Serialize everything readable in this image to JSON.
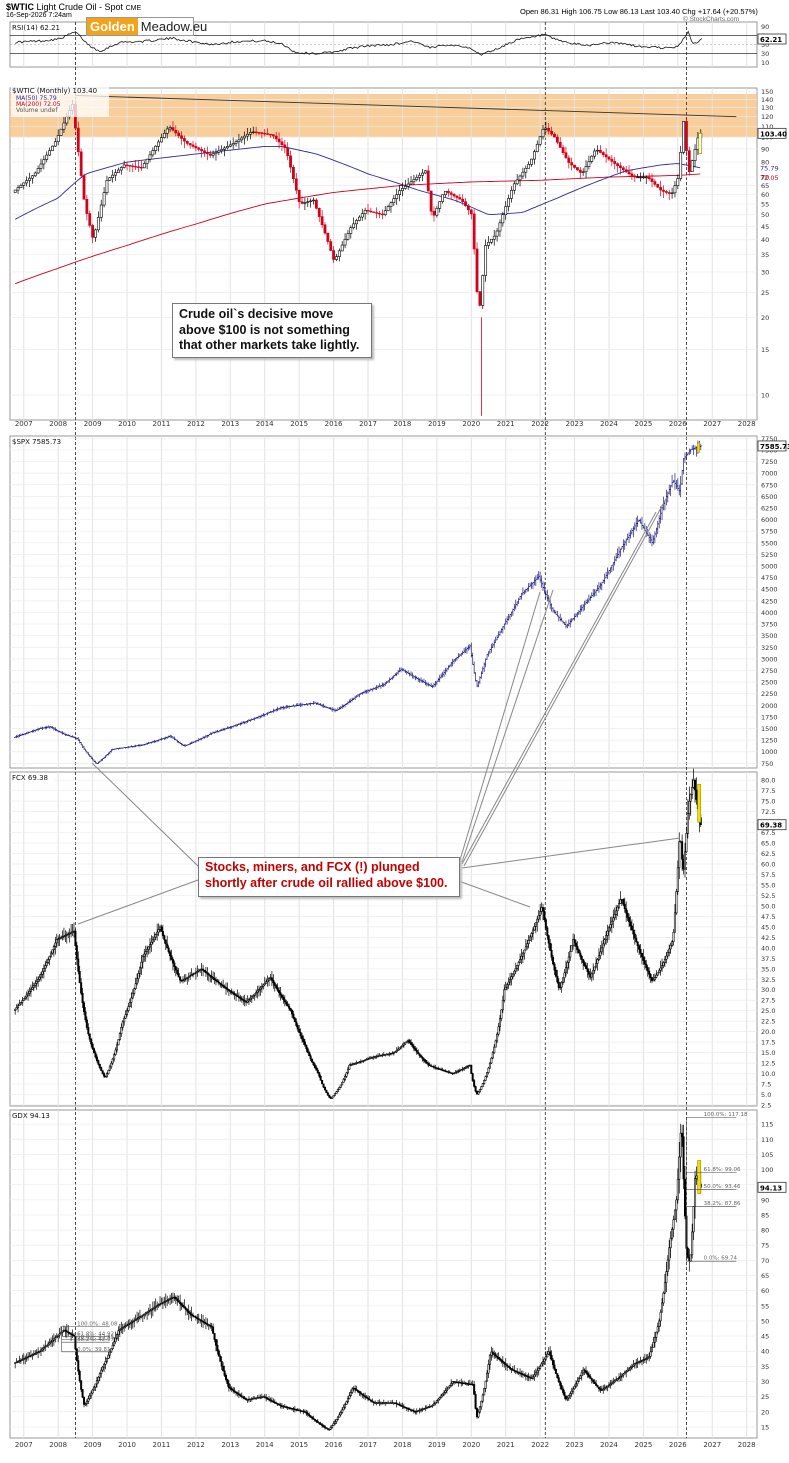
{
  "header": {
    "symbol": "$WTIC",
    "description": "Light Crude Oil - Spot",
    "exchange": "CME",
    "date": "16-Sep-2026 7:24am",
    "open_label": "Open",
    "open": "86.31",
    "high_label": "High",
    "high": "106.75",
    "low_label": "Low",
    "low": "86.13",
    "last_label": "Last",
    "last": "103.40",
    "chg_label": "Chg",
    "chg": "+17.64 (+20.57%)",
    "credit": "© StockCharts.com"
  },
  "logo": {
    "part1": "Golden",
    "part2": "Meadow.eu"
  },
  "notes": {
    "oil": "Crude oil`s decisive move above $100 is not something that other markets take lightly.",
    "stocks": "Stocks, miners, and FCX (!) plunged shortly after crude oil rallied above $100."
  },
  "colors": {
    "up": "#000000",
    "down": "#d0021b",
    "ma50": "#2d2a9c",
    "ma200": "#d0021b",
    "band": "#f7c68a",
    "spx": "#1c1a7a",
    "yellow": "#f0e000",
    "rsi": "#111111"
  },
  "chart_data": [
    {
      "type": "line",
      "panel": "rsi",
      "label": "RSI(14) 62.21",
      "last": "62.21",
      "levels": [
        70,
        30
      ],
      "axis_ticks": [
        "90",
        "70",
        "50",
        "30",
        "10"
      ],
      "x": [
        2006.75,
        2007.5,
        2008.0,
        2008.5,
        2008.9,
        2009.2,
        2009.8,
        2010.5,
        2011.3,
        2012.0,
        2012.5,
        2013.2,
        2014.0,
        2014.5,
        2014.9,
        2015.5,
        2016.0,
        2016.5,
        2017.0,
        2017.7,
        2018.3,
        2018.8,
        2019.3,
        2019.8,
        2020.1,
        2020.3,
        2020.8,
        2021.3,
        2021.8,
        2022.1,
        2022.4,
        2022.9,
        2023.4,
        2023.9,
        2024.4,
        2024.9,
        2025.4,
        2025.9,
        2026.1,
        2026.3,
        2026.45,
        2026.7
      ],
      "y": [
        55,
        58,
        62,
        78,
        48,
        35,
        55,
        57,
        64,
        55,
        50,
        57,
        58,
        52,
        32,
        30,
        33,
        42,
        47,
        50,
        58,
        42,
        50,
        46,
        35,
        28,
        42,
        60,
        66,
        72,
        62,
        52,
        48,
        54,
        52,
        45,
        44,
        41,
        55,
        78,
        50,
        62.21
      ]
    },
    {
      "type": "candlestick",
      "panel": "wtic",
      "label": "$WTIC (Monthly) 103.40",
      "legend": [
        "MA(50) 75.79",
        "MA(200) 72.05",
        "Volume undef"
      ],
      "last": "103.40",
      "scale": "log",
      "axis_ticks": [
        "150",
        "140",
        "130",
        "120",
        "110",
        "100",
        "90",
        "80",
        "70",
        "65",
        "60",
        "55",
        "50",
        "45",
        "40",
        "35",
        "30",
        "25",
        "20",
        "15",
        "10"
      ],
      "last_labels": [
        "103.40",
        "75.79",
        "72.05"
      ],
      "band": [
        100,
        147
      ],
      "x": [
        2006.75,
        2007.4,
        2008.0,
        2008.5,
        2008.85,
        2009.1,
        2009.5,
        2010.0,
        2010.5,
        2011.3,
        2011.8,
        2012.5,
        2013.2,
        2013.7,
        2014.3,
        2014.7,
        2015.1,
        2015.5,
        2015.9,
        2016.1,
        2016.6,
        2017.0,
        2017.5,
        2018.0,
        2018.75,
        2018.95,
        2019.3,
        2019.8,
        2020.1,
        2020.3,
        2020.5,
        2020.8,
        2021.3,
        2021.8,
        2022.2,
        2022.5,
        2022.9,
        2023.3,
        2023.7,
        2024.3,
        2024.8,
        2025.2,
        2025.6,
        2025.9,
        2026.1,
        2026.25,
        2026.4,
        2026.55,
        2026.7
      ],
      "y": [
        61,
        72,
        96,
        134,
        55,
        40,
        68,
        78,
        76,
        110,
        95,
        85,
        95,
        105,
        102,
        90,
        55,
        57,
        40,
        33,
        45,
        52,
        50,
        62,
        74,
        48,
        62,
        57,
        50,
        20,
        38,
        42,
        65,
        80,
        110,
        100,
        80,
        72,
        90,
        78,
        70,
        70,
        62,
        60,
        70,
        115,
        72,
        86,
        103.4
      ],
      "ma50": {
        "x": [
          2006.75,
          2008.0,
          2008.8,
          2010.0,
          2012.0,
          2014.0,
          2014.5,
          2015.5,
          2017.0,
          2018.5,
          2019.5,
          2020.5,
          2021.5,
          2022.5,
          2023.5,
          2024.5,
          2025.5,
          2026.0,
          2026.7
        ],
        "y": [
          48,
          58,
          72,
          80,
          86,
          92,
          92,
          86,
          72,
          62,
          57,
          50,
          51,
          58,
          66,
          74,
          78,
          79,
          75.79
        ]
      },
      "ma200": {
        "x": [
          2006.75,
          2008.0,
          2010.0,
          2012.0,
          2014.0,
          2016.0,
          2018.0,
          2020.0,
          2022.0,
          2024.0,
          2026.0,
          2026.7
        ],
        "y": [
          27,
          31,
          38,
          46,
          55,
          61,
          65,
          67,
          68,
          70,
          71,
          72.05
        ]
      },
      "trendline": {
        "x": [
          2008.5,
          2027.7
        ],
        "y": [
          145,
          120
        ]
      }
    },
    {
      "type": "bar",
      "panel": "spx",
      "label": "$SPX 7585.73",
      "last": "7585.73",
      "axis_ticks": [
        "7750",
        "7500",
        "7250",
        "7000",
        "6750",
        "6500",
        "6250",
        "6000",
        "5750",
        "5500",
        "5250",
        "5000",
        "4750",
        "4500",
        "4250",
        "4000",
        "3750",
        "3500",
        "3250",
        "3000",
        "2750",
        "2500",
        "2250",
        "2000",
        "1750",
        "1500",
        "1250",
        "1000",
        "750"
      ],
      "x": [
        2006.75,
        2007.5,
        2007.8,
        2008.2,
        2008.6,
        2009.15,
        2009.6,
        2010.5,
        2011.3,
        2011.7,
        2012.5,
        2013.5,
        2014.5,
        2015.5,
        2016.1,
        2016.8,
        2017.5,
        2018.0,
        2018.9,
        2019.5,
        2020.0,
        2020.2,
        2020.5,
        2021.0,
        2021.5,
        2022.0,
        2022.4,
        2022.8,
        2023.3,
        2023.8,
        2024.4,
        2024.9,
        2025.3,
        2025.6,
        2025.9,
        2026.1,
        2026.2,
        2026.4,
        2026.7
      ],
      "y": [
        1310,
        1500,
        1540,
        1380,
        1280,
        740,
        1050,
        1150,
        1340,
        1120,
        1400,
        1650,
        1950,
        2050,
        1880,
        2250,
        2450,
        2780,
        2400,
        2950,
        3280,
        2400,
        3100,
        3750,
        4400,
        4780,
        4050,
        3700,
        4150,
        4600,
        5400,
        6000,
        5500,
        6300,
        6850,
        6600,
        7300,
        7500,
        7585.73
      ]
    },
    {
      "type": "candlestick",
      "panel": "fcx",
      "label": "FCX 69.38",
      "last": "69.38",
      "axis_ticks": [
        "80.0",
        "77.5",
        "75.0",
        "72.5",
        "70.0",
        "67.5",
        "65.0",
        "62.5",
        "60.0",
        "57.5",
        "55.0",
        "52.5",
        "50.0",
        "47.5",
        "45.0",
        "42.5",
        "40.0",
        "37.5",
        "35.0",
        "32.5",
        "30.0",
        "27.5",
        "25.0",
        "22.5",
        "20.0",
        "17.5",
        "15.0",
        "12.5",
        "10.0",
        "7.5",
        "5.0",
        "2.5"
      ],
      "x": [
        2006.75,
        2007.5,
        2008.0,
        2008.5,
        2008.9,
        2009.4,
        2009.9,
        2010.5,
        2011.0,
        2011.6,
        2012.2,
        2012.8,
        2013.5,
        2014.2,
        2014.8,
        2015.2,
        2015.6,
        2015.95,
        2016.5,
        2017.2,
        2017.8,
        2018.2,
        2018.8,
        2019.5,
        2020.0,
        2020.2,
        2020.6,
        2021.0,
        2021.5,
        2022.1,
        2022.6,
        2023.0,
        2023.5,
        2024.0,
        2024.4,
        2024.9,
        2025.3,
        2025.6,
        2025.9,
        2026.1,
        2026.2,
        2026.35,
        2026.5,
        2026.7
      ],
      "y": [
        25,
        33,
        42,
        44,
        20,
        9,
        22,
        38,
        45,
        32,
        35,
        31,
        27,
        33,
        25,
        17,
        10,
        4,
        12,
        14,
        15,
        18,
        12,
        10,
        12,
        5,
        13,
        30,
        38,
        50,
        30,
        42,
        33,
        44,
        52,
        40,
        32,
        36,
        42,
        68,
        58,
        74,
        80,
        69.38
      ]
    },
    {
      "type": "candlestick",
      "panel": "gdx",
      "label": "GDX 94.13",
      "last": "94.13",
      "axis_ticks": [
        "115",
        "110",
        "105",
        "100",
        "95",
        "90",
        "85",
        "80",
        "75",
        "70",
        "65",
        "60",
        "55",
        "50",
        "45",
        "40",
        "35",
        "30",
        "25",
        "20",
        "15"
      ],
      "x_ticks": [
        "2007",
        "2008",
        "2009",
        "2010",
        "2011",
        "2012",
        "2013",
        "2014",
        "2015",
        "2016",
        "2017",
        "2018",
        "2019",
        "2020",
        "2021",
        "2022",
        "2023",
        "2024",
        "2025",
        "2026",
        "2027",
        "2028"
      ],
      "x": [
        2006.75,
        2007.5,
        2008.2,
        2008.5,
        2008.8,
        2009.3,
        2009.8,
        2010.5,
        2010.9,
        2011.4,
        2011.9,
        2012.5,
        2013.0,
        2013.5,
        2014.0,
        2014.5,
        2015.2,
        2015.9,
        2016.6,
        2017.2,
        2017.8,
        2018.4,
        2018.9,
        2019.5,
        2020.1,
        2020.2,
        2020.6,
        2021.2,
        2021.8,
        2022.3,
        2022.8,
        2023.3,
        2023.8,
        2024.3,
        2024.8,
        2025.2,
        2025.5,
        2025.8,
        2026.0,
        2026.15,
        2026.3,
        2026.4,
        2026.55,
        2026.7
      ],
      "y": [
        36,
        40,
        47,
        45,
        22,
        34,
        47,
        52,
        55,
        58,
        52,
        48,
        28,
        24,
        25,
        22,
        20,
        14,
        28,
        23,
        23,
        20,
        22,
        30,
        29,
        18,
        40,
        34,
        31,
        40,
        24,
        34,
        27,
        31,
        36,
        38,
        50,
        75,
        90,
        117,
        72,
        69,
        99,
        94.13
      ],
      "fib_2008": [
        {
          "label": "100.0%: 48.08",
          "value": 48.08
        },
        {
          "label": "61.8%: 44.92",
          "value": 44.92
        },
        {
          "label": "50.0%: 43.95",
          "value": 43.95
        },
        {
          "label": "38.2%: 42.97",
          "value": 42.97
        },
        {
          "label": "0.0%: 39.81",
          "value": 39.81
        }
      ],
      "fib_2026": [
        {
          "label": "100.0%: 117.18",
          "value": 117.18
        },
        {
          "label": "61.8%: 99.06",
          "value": 99.06
        },
        {
          "label": "50.0%: 93.46",
          "value": 93.46
        },
        {
          "label": "38.2%: 87.86",
          "value": 87.86
        },
        {
          "label": "0.0%: 69.74",
          "value": 69.74
        }
      ]
    }
  ]
}
